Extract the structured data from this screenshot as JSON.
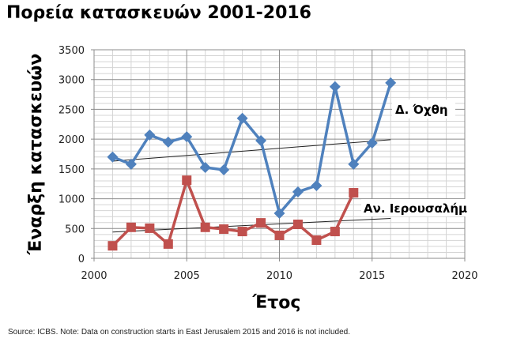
{
  "chart_data": {
    "type": "line",
    "title": "Πορεία κατασκευών 2001-2016",
    "xlabel": "Έτος",
    "ylabel": "Έναρξη κατασκευών",
    "xlim": [
      2000,
      2020
    ],
    "ylim": [
      0,
      3500
    ],
    "xticks": [
      2000,
      2005,
      2010,
      2015,
      2020
    ],
    "yticks": [
      0,
      500,
      1000,
      1500,
      2000,
      2500,
      3000,
      3500
    ],
    "grid": true,
    "series": [
      {
        "name": "Δ. Όχθη",
        "color": "#4F81BD",
        "marker": "diamond",
        "x": [
          2001,
          2002,
          2003,
          2004,
          2005,
          2006,
          2007,
          2008,
          2009,
          2010,
          2011,
          2012,
          2013,
          2014,
          2015,
          2016
        ],
        "values": [
          1700,
          1580,
          2070,
          1950,
          2040,
          1525,
          1485,
          2350,
          1975,
          755,
          1115,
          1220,
          2880,
          1580,
          1935,
          2945
        ],
        "trend": [
          1630,
          1990
        ]
      },
      {
        "name": "Αν. Ιερουσαλήμ",
        "color": "#C0504D",
        "marker": "square",
        "x": [
          2001,
          2002,
          2003,
          2004,
          2005,
          2006,
          2007,
          2008,
          2009,
          2010,
          2011,
          2012,
          2013,
          2014
        ],
        "values": [
          210,
          520,
          505,
          240,
          1310,
          520,
          490,
          450,
          595,
          385,
          570,
          305,
          450,
          1100
        ],
        "trend": [
          440,
          670
        ]
      }
    ]
  },
  "source": "Source: ICBS. Note: Data on construction starts in East Jerusalem 2015 and 2016 is not included."
}
